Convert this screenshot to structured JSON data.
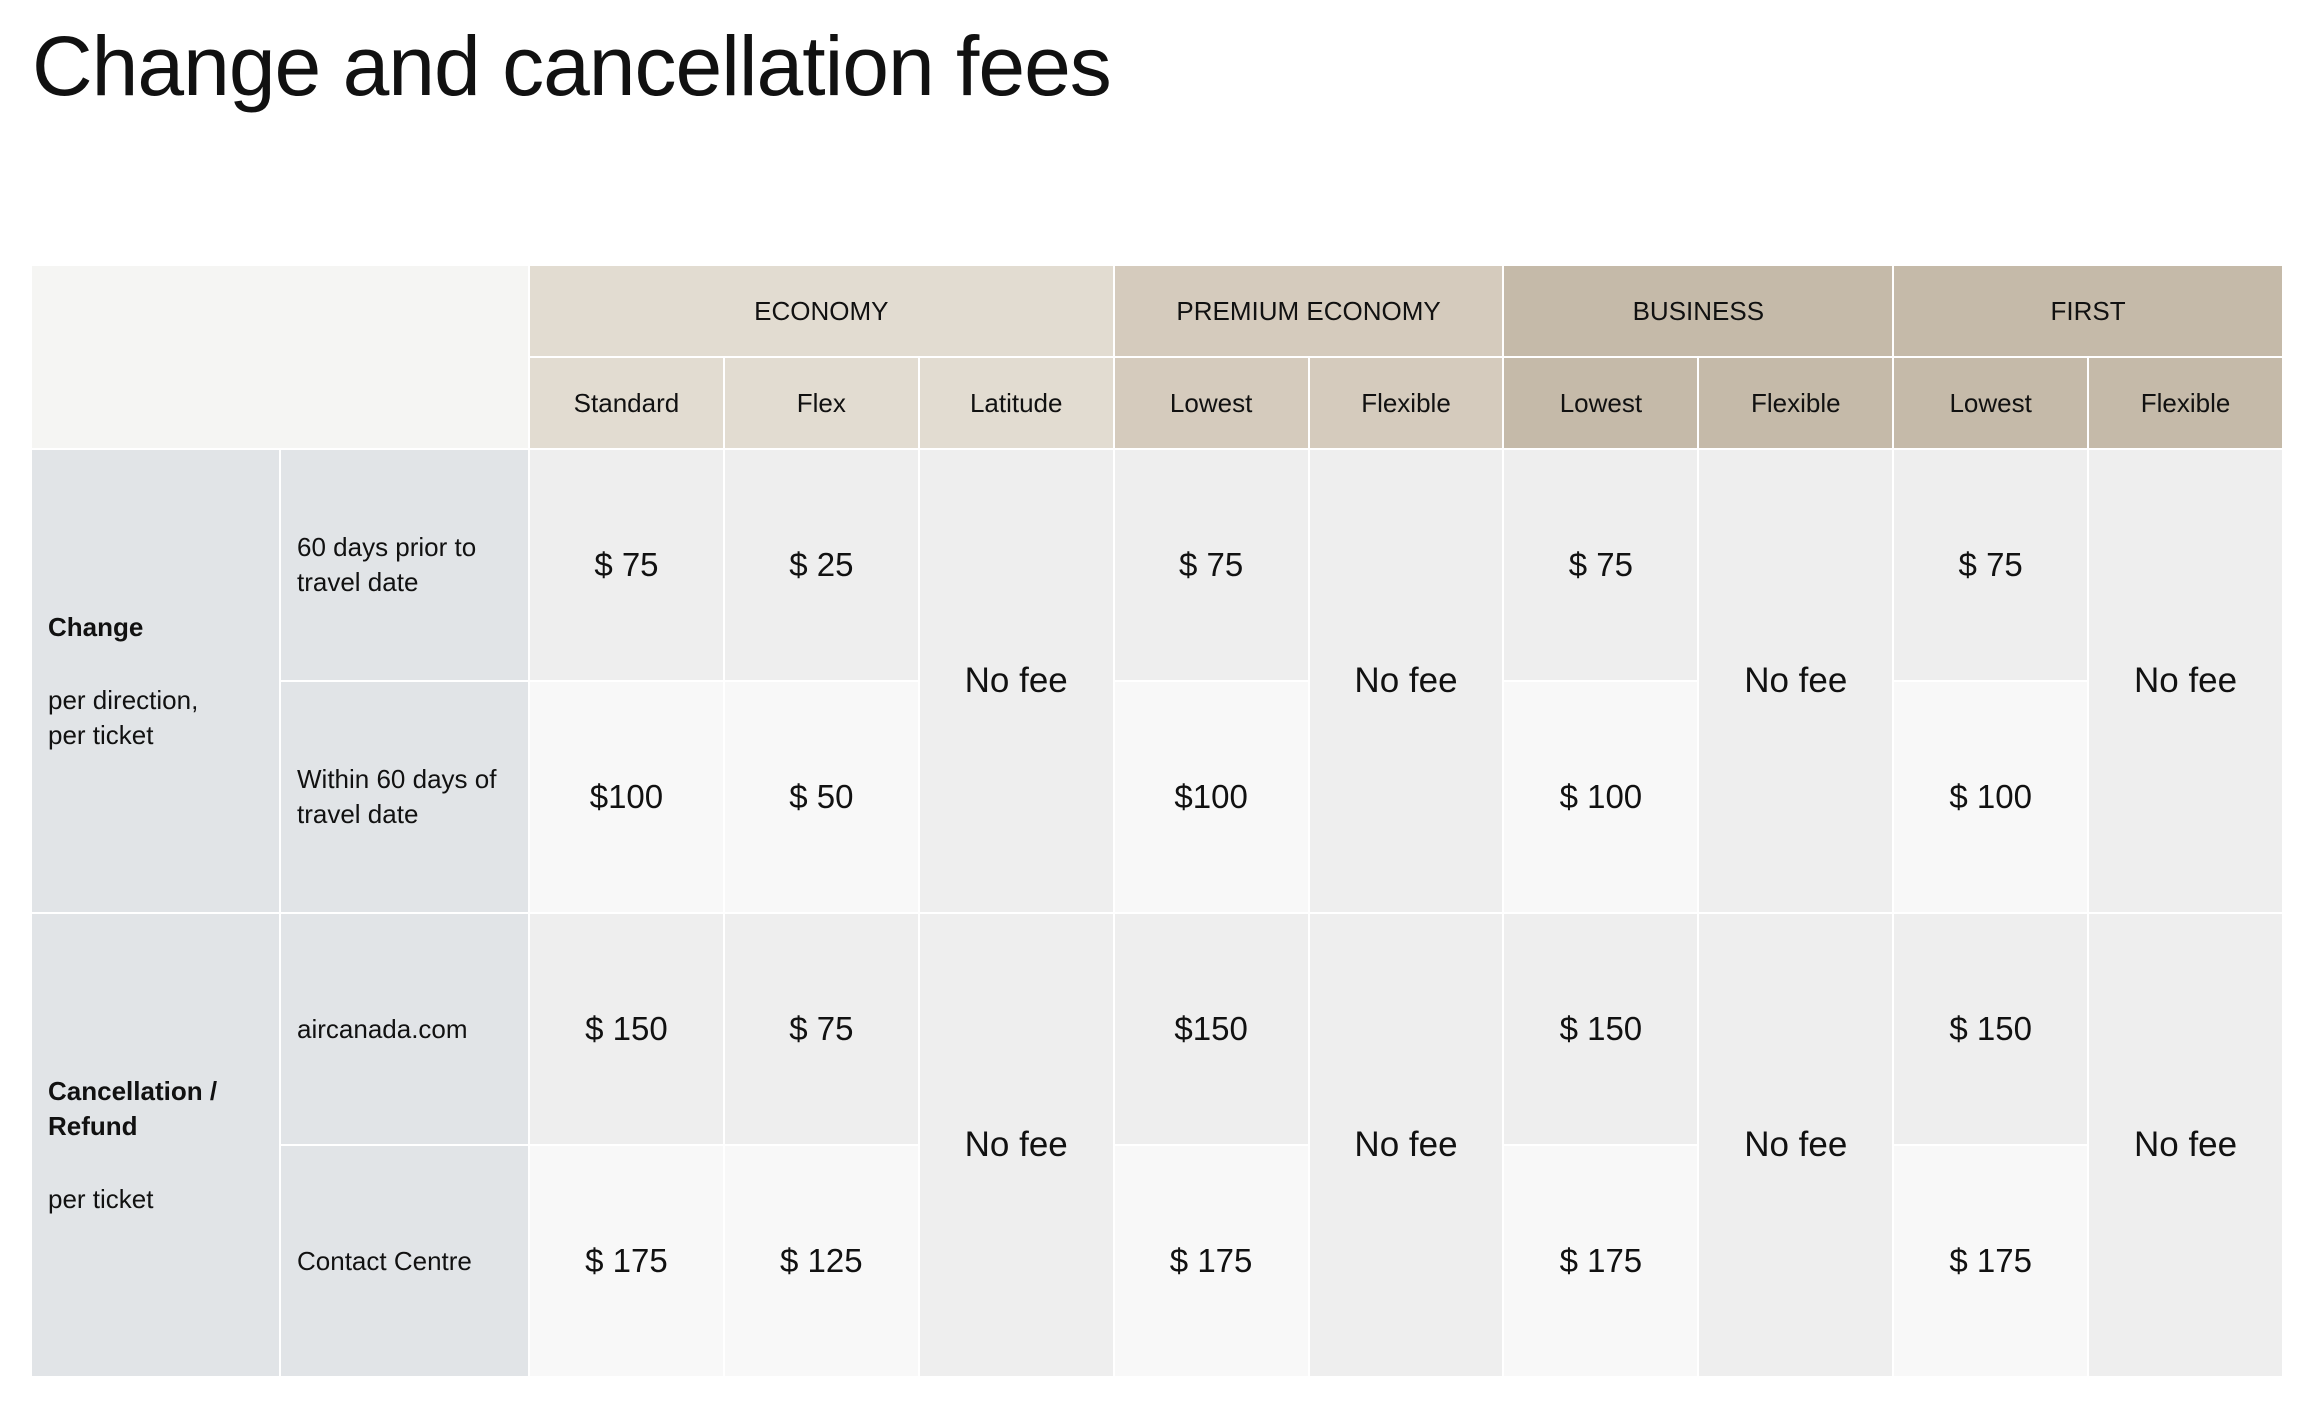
{
  "title": "Change and cancellation fees",
  "cabins": [
    {
      "label": "ECONOMY",
      "fares": [
        "Standard",
        "Flex",
        "Latitude"
      ]
    },
    {
      "label": "PREMIUM ECONOMY",
      "fares": [
        "Lowest",
        "Flexible"
      ]
    },
    {
      "label": "BUSINESS",
      "fares": [
        "Lowest",
        "Flexible"
      ]
    },
    {
      "label": "FIRST",
      "fares": [
        "Lowest",
        "Flexible"
      ]
    }
  ],
  "groups": [
    {
      "title": "Change",
      "subtitle": "per direction, per ticket",
      "rows": [
        {
          "label": "60 days prior to travel date",
          "values": [
            "$ 75",
            "$ 25",
            "$ 75",
            "$ 75",
            "$ 75"
          ]
        },
        {
          "label": "Within 60 days of travel date",
          "values": [
            "$100",
            "$ 50",
            "$100",
            "$ 100",
            "$ 100"
          ]
        }
      ],
      "no_fee": [
        "No fee",
        "No fee",
        "No fee",
        "No fee"
      ]
    },
    {
      "title": "Cancellation / Refund",
      "subtitle": "per ticket",
      "rows": [
        {
          "label": "aircanada.com",
          "values": [
            "$ 150",
            "$ 75",
            "$150",
            "$ 150",
            "$ 150"
          ]
        },
        {
          "label": "Contact Centre",
          "values": [
            "$ 175",
            "$ 125",
            "$ 175",
            "$ 175",
            "$ 175"
          ]
        }
      ],
      "no_fee": [
        "No fee",
        "No fee",
        "No fee",
        "No fee"
      ]
    }
  ],
  "colors": {
    "economy": "#e2dcd1",
    "premium": "#d5cbbd",
    "business_first": "#c5baa9",
    "label": "#e1e4e7"
  }
}
